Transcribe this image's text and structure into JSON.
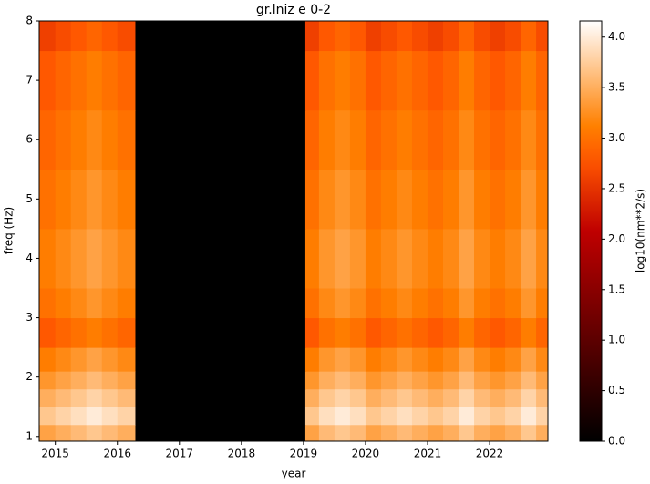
{
  "chart_data": {
    "type": "heatmap",
    "title": "gr.lniz e 0-2",
    "x_label": "year",
    "y_label": "freq (Hz)",
    "colorbar_label": "log10(nm**2/s)",
    "colormap": "gist_heat",
    "x_edges": [
      2014.74,
      2015.0,
      2015.25,
      2015.5,
      2015.75,
      2016.0,
      2016.29,
      2019.03,
      2019.25,
      2019.5,
      2019.75,
      2020.0,
      2020.25,
      2020.5,
      2020.75,
      2021.0,
      2021.25,
      2021.5,
      2021.75,
      2022.0,
      2022.25,
      2022.5,
      2022.75,
      2022.94
    ],
    "y_edges": [
      0.92,
      1.2,
      1.5,
      1.8,
      2.1,
      2.5,
      3.0,
      3.5,
      4.5,
      5.5,
      6.5,
      7.5,
      8.0
    ],
    "z": [
      [
        3.4,
        3.5,
        3.6,
        3.7,
        3.6,
        3.5,
        0,
        3.4,
        3.6,
        3.7,
        3.6,
        3.4,
        3.5,
        3.6,
        3.5,
        3.4,
        3.5,
        3.7,
        3.5,
        3.4,
        3.5,
        3.7,
        3.5
      ],
      [
        3.7,
        3.8,
        3.9,
        4.0,
        3.9,
        3.8,
        0,
        3.7,
        3.9,
        4.0,
        3.9,
        3.7,
        3.8,
        3.9,
        3.8,
        3.7,
        3.8,
        4.0,
        3.8,
        3.7,
        3.8,
        4.0,
        3.8
      ],
      [
        3.5,
        3.6,
        3.7,
        3.8,
        3.7,
        3.6,
        0,
        3.5,
        3.7,
        3.8,
        3.7,
        3.5,
        3.6,
        3.7,
        3.6,
        3.5,
        3.6,
        3.8,
        3.6,
        3.5,
        3.6,
        3.8,
        3.6
      ],
      [
        3.3,
        3.4,
        3.5,
        3.6,
        3.5,
        3.4,
        0,
        3.3,
        3.5,
        3.6,
        3.5,
        3.3,
        3.4,
        3.5,
        3.4,
        3.3,
        3.4,
        3.6,
        3.4,
        3.3,
        3.4,
        3.6,
        3.4
      ],
      [
        3.1,
        3.2,
        3.3,
        3.4,
        3.3,
        3.2,
        0,
        3.1,
        3.3,
        3.4,
        3.3,
        3.1,
        3.2,
        3.3,
        3.2,
        3.1,
        3.2,
        3.4,
        3.2,
        3.1,
        3.2,
        3.4,
        3.2
      ],
      [
        2.8,
        2.9,
        3.0,
        3.1,
        3.0,
        2.9,
        0,
        2.8,
        3.0,
        3.1,
        3.0,
        2.8,
        2.9,
        3.0,
        2.9,
        2.8,
        2.9,
        3.1,
        2.9,
        2.8,
        2.9,
        3.1,
        2.9
      ],
      [
        3.0,
        3.1,
        3.2,
        3.3,
        3.2,
        3.1,
        0,
        3.0,
        3.2,
        3.3,
        3.2,
        3.0,
        3.1,
        3.2,
        3.1,
        3.0,
        3.1,
        3.3,
        3.1,
        3.0,
        3.1,
        3.3,
        3.1
      ],
      [
        3.1,
        3.2,
        3.3,
        3.4,
        3.3,
        3.2,
        0,
        3.1,
        3.3,
        3.4,
        3.3,
        3.1,
        3.2,
        3.3,
        3.2,
        3.1,
        3.2,
        3.4,
        3.2,
        3.1,
        3.2,
        3.4,
        3.2
      ],
      [
        3.0,
        3.1,
        3.2,
        3.3,
        3.2,
        3.1,
        0,
        3.0,
        3.2,
        3.3,
        3.2,
        3.0,
        3.1,
        3.2,
        3.1,
        3.0,
        3.1,
        3.3,
        3.1,
        3.0,
        3.1,
        3.3,
        3.1
      ],
      [
        2.9,
        3.0,
        3.1,
        3.2,
        3.1,
        3.0,
        0,
        2.9,
        3.1,
        3.2,
        3.1,
        2.9,
        3.0,
        3.1,
        3.0,
        2.9,
        3.0,
        3.2,
        3.0,
        2.9,
        3.0,
        3.2,
        3.0
      ],
      [
        2.8,
        2.9,
        3.0,
        3.1,
        3.0,
        2.9,
        0,
        2.8,
        3.0,
        3.1,
        3.0,
        2.8,
        2.9,
        3.0,
        2.9,
        2.8,
        2.9,
        3.1,
        2.9,
        2.8,
        2.9,
        3.1,
        2.9
      ],
      [
        2.6,
        2.7,
        2.8,
        2.9,
        2.8,
        2.7,
        0,
        2.6,
        2.8,
        2.9,
        2.8,
        2.6,
        2.7,
        2.8,
        2.7,
        2.6,
        2.7,
        2.9,
        2.7,
        2.6,
        2.7,
        2.9,
        2.7
      ]
    ],
    "xlim": [
      2014.74,
      2022.94
    ],
    "xticks": [
      2015,
      2016,
      2017,
      2018,
      2019,
      2020,
      2021,
      2022
    ],
    "ylim": [
      0.92,
      8
    ],
    "yticks": [
      1,
      2,
      3,
      4,
      5,
      6,
      7,
      8
    ],
    "clim": [
      0,
      4.16
    ],
    "cticks": [
      {
        "value": 0,
        "label": "0.0"
      },
      {
        "value": 0.5,
        "label": "0.5"
      },
      {
        "value": 1,
        "label": "1.0"
      },
      {
        "value": 1.5,
        "label": "1.5"
      },
      {
        "value": 2,
        "label": "2.0"
      },
      {
        "value": 2.5,
        "label": "2.5"
      },
      {
        "value": 3,
        "label": "3.0"
      },
      {
        "value": 3.5,
        "label": "3.5"
      },
      {
        "value": 4,
        "label": "4.0"
      }
    ]
  }
}
